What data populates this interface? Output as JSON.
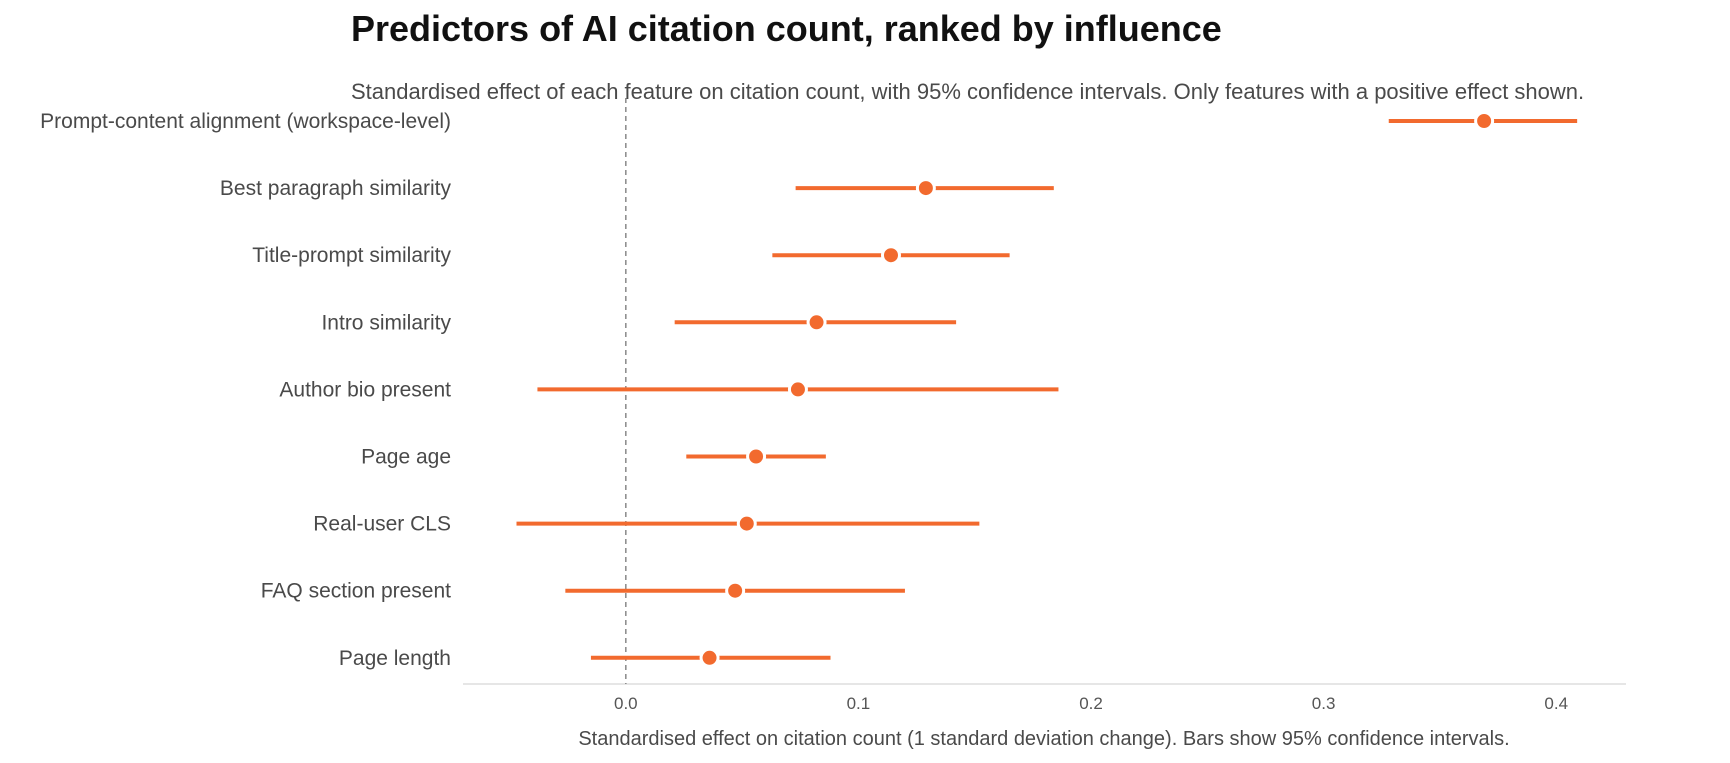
{
  "chart_data": {
    "type": "forest",
    "title": "Predictors of AI citation count, ranked by influence",
    "subtitle": "Standardised effect of each feature on citation count, with 95% confidence intervals. Only features with a positive effect shown.",
    "xlabel": "Standardised effect on citation count (1 standard deviation change). Bars show 95% confidence intervals.",
    "ylabel": "",
    "xlim": [
      -0.07,
      0.43
    ],
    "xticks": [
      0.0,
      0.1,
      0.2,
      0.3,
      0.4
    ],
    "xtick_labels": [
      "0.0",
      "0.1",
      "0.2",
      "0.3",
      "0.4"
    ],
    "reference_line": 0.0,
    "grid": false,
    "color": "#f26a2e",
    "features": [
      {
        "label": "Prompt-content alignment (workspace-level)",
        "estimate": 0.369,
        "ci_low": 0.328,
        "ci_high": 0.409
      },
      {
        "label": "Best paragraph similarity",
        "estimate": 0.129,
        "ci_low": 0.073,
        "ci_high": 0.184
      },
      {
        "label": "Title-prompt similarity",
        "estimate": 0.114,
        "ci_low": 0.063,
        "ci_high": 0.165
      },
      {
        "label": "Intro similarity",
        "estimate": 0.082,
        "ci_low": 0.021,
        "ci_high": 0.142
      },
      {
        "label": "Author bio present",
        "estimate": 0.074,
        "ci_low": -0.038,
        "ci_high": 0.186
      },
      {
        "label": "Page age",
        "estimate": 0.056,
        "ci_low": 0.026,
        "ci_high": 0.086
      },
      {
        "label": "Real-user CLS",
        "estimate": 0.052,
        "ci_low": -0.047,
        "ci_high": 0.152
      },
      {
        "label": "FAQ section present",
        "estimate": 0.047,
        "ci_low": -0.026,
        "ci_high": 0.12
      },
      {
        "label": "Page length",
        "estimate": 0.036,
        "ci_low": -0.015,
        "ci_high": 0.088
      }
    ]
  }
}
